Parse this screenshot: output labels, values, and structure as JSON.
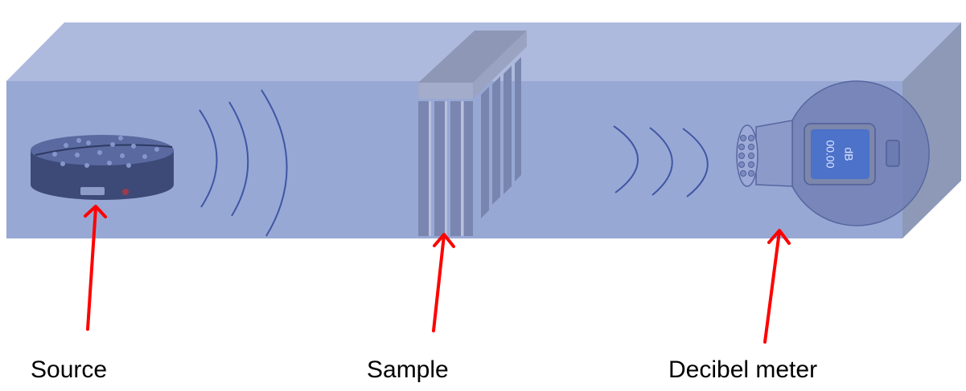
{
  "labels": {
    "source": "Source",
    "sample": "Sample",
    "meter": "Decibel meter"
  },
  "meter": {
    "reading": "00.00",
    "unit": "dB"
  },
  "colors": {
    "tube_front": "#98A8D4",
    "tube_top": "#AEBADD",
    "tube_side": "#8E99B8",
    "wave": "#3F56A6",
    "arrow": "#FF0000",
    "screen": "#4C72C9"
  }
}
